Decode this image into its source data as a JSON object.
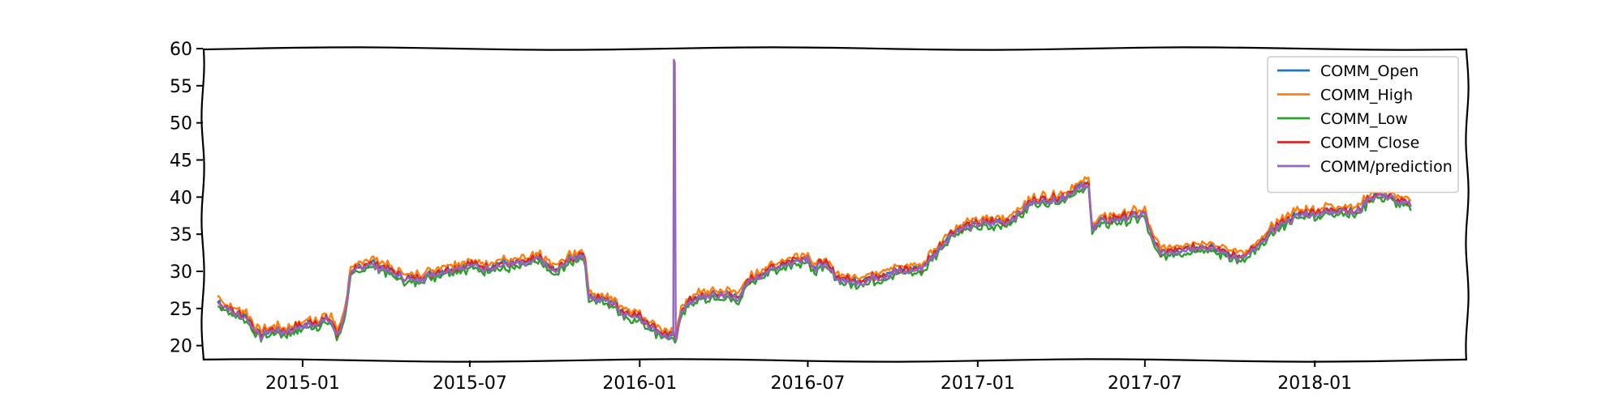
{
  "chart_data": {
    "type": "line",
    "title": "",
    "xlabel": "",
    "ylabel": "",
    "ylim": [
      18,
      60
    ],
    "xlim": [
      "2014-09-15",
      "2018-06-15"
    ],
    "grid": false,
    "legend_position": "top-right",
    "yticks": [
      {
        "value": 20,
        "label": "20"
      },
      {
        "value": 25,
        "label": "25"
      },
      {
        "value": 30,
        "label": "30"
      },
      {
        "value": 35,
        "label": "35"
      },
      {
        "value": 40,
        "label": "40"
      },
      {
        "value": 45,
        "label": "45"
      },
      {
        "value": 50,
        "label": "50"
      },
      {
        "value": 55,
        "label": "55"
      },
      {
        "value": 60,
        "label": "60"
      }
    ],
    "xticks": [
      {
        "value": "2015-01-01",
        "label": "2015-01"
      },
      {
        "value": "2015-07-01",
        "label": "2015-07"
      },
      {
        "value": "2016-01-01",
        "label": "2016-01"
      },
      {
        "value": "2016-07-01",
        "label": "2016-07"
      },
      {
        "value": "2017-01-01",
        "label": "2017-01"
      },
      {
        "value": "2017-07-01",
        "label": "2017-07"
      },
      {
        "value": "2018-01-01",
        "label": "2018-01"
      }
    ],
    "series": [
      {
        "name": "COMM_Open",
        "color": "#1f77b4",
        "offset": 0.0
      },
      {
        "name": "COMM_High",
        "color": "#ff7f0e",
        "offset": 0.5
      },
      {
        "name": "COMM_Low",
        "color": "#2ca02c",
        "offset": -0.6
      },
      {
        "name": "COMM_Close",
        "color": "#d62728",
        "offset": 0.0
      },
      {
        "name": "COMM/prediction",
        "color": "#9467bd",
        "offset": -0.2
      }
    ],
    "price_path": [
      [
        "2014-10-01",
        26.0
      ],
      [
        "2014-10-15",
        24.8
      ],
      [
        "2014-11-01",
        24.0
      ],
      [
        "2014-11-15",
        21.5
      ],
      [
        "2014-12-01",
        22.2
      ],
      [
        "2014-12-15",
        22.0
      ],
      [
        "2015-01-01",
        22.8
      ],
      [
        "2015-01-15",
        23.2
      ],
      [
        "2015-02-01",
        23.6
      ],
      [
        "2015-02-07",
        21.5
      ],
      [
        "2015-02-15",
        24.0
      ],
      [
        "2015-02-22",
        29.5
      ],
      [
        "2015-03-01",
        30.5
      ],
      [
        "2015-03-15",
        31.2
      ],
      [
        "2015-04-01",
        30.5
      ],
      [
        "2015-04-15",
        29.5
      ],
      [
        "2015-05-01",
        29.0
      ],
      [
        "2015-06-01",
        30.2
      ],
      [
        "2015-07-01",
        31.0
      ],
      [
        "2015-07-15",
        30.6
      ],
      [
        "2015-08-01",
        31.0
      ],
      [
        "2015-09-01",
        31.2
      ],
      [
        "2015-09-15",
        31.8
      ],
      [
        "2015-10-01",
        30.0
      ],
      [
        "2015-10-15",
        31.5
      ],
      [
        "2015-11-01",
        32.5
      ],
      [
        "2015-11-07",
        27.0
      ],
      [
        "2015-11-15",
        26.5
      ],
      [
        "2015-12-01",
        26.0
      ],
      [
        "2015-12-15",
        24.5
      ],
      [
        "2016-01-01",
        24.0
      ],
      [
        "2016-01-15",
        22.5
      ],
      [
        "2016-02-01",
        21.5
      ],
      [
        "2016-02-10",
        21.0
      ],
      [
        "2016-02-15",
        25.0
      ],
      [
        "2016-03-01",
        26.5
      ],
      [
        "2016-04-01",
        27.0
      ],
      [
        "2016-04-15",
        26.5
      ],
      [
        "2016-05-01",
        29.0
      ],
      [
        "2016-05-15",
        30.0
      ],
      [
        "2016-06-01",
        31.0
      ],
      [
        "2016-06-15",
        31.5
      ],
      [
        "2016-07-01",
        32.0
      ],
      [
        "2016-07-10",
        30.0
      ],
      [
        "2016-07-15",
        31.5
      ],
      [
        "2016-08-01",
        29.5
      ],
      [
        "2016-08-15",
        28.8
      ],
      [
        "2016-09-01",
        29.0
      ],
      [
        "2016-10-01",
        30.0
      ],
      [
        "2016-11-01",
        30.5
      ],
      [
        "2016-11-15",
        32.5
      ],
      [
        "2016-12-01",
        35.0
      ],
      [
        "2016-12-15",
        36.0
      ],
      [
        "2017-01-01",
        36.5
      ],
      [
        "2017-02-01",
        36.8
      ],
      [
        "2017-02-15",
        38.0
      ],
      [
        "2017-03-01",
        39.5
      ],
      [
        "2017-04-01",
        40.0
      ],
      [
        "2017-04-15",
        41.0
      ],
      [
        "2017-05-01",
        41.8
      ],
      [
        "2017-05-05",
        36.0
      ],
      [
        "2017-05-15",
        36.8
      ],
      [
        "2017-06-01",
        37.2
      ],
      [
        "2017-06-15",
        37.5
      ],
      [
        "2017-07-01",
        37.8
      ],
      [
        "2017-07-10",
        34.0
      ],
      [
        "2017-07-20",
        32.5
      ],
      [
        "2017-08-01",
        33.0
      ],
      [
        "2017-09-01",
        33.5
      ],
      [
        "2017-10-01",
        32.5
      ],
      [
        "2017-10-15",
        31.8
      ],
      [
        "2017-11-01",
        33.5
      ],
      [
        "2017-11-15",
        35.5
      ],
      [
        "2017-12-01",
        37.0
      ],
      [
        "2017-12-15",
        37.8
      ],
      [
        "2018-01-01",
        38.0
      ],
      [
        "2018-02-01",
        38.5
      ],
      [
        "2018-02-15",
        38.0
      ],
      [
        "2018-03-01",
        40.0
      ],
      [
        "2018-03-15",
        40.5
      ],
      [
        "2018-04-01",
        39.5
      ],
      [
        "2018-04-15",
        39.0
      ]
    ],
    "prediction_spike": {
      "date": "2016-02-08",
      "value": 58.5
    }
  }
}
